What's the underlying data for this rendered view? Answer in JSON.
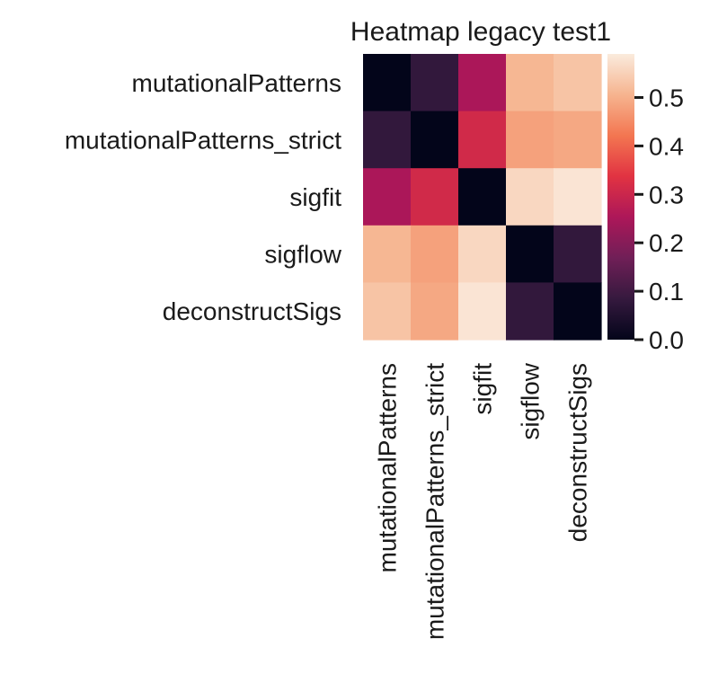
{
  "chart_data": {
    "type": "heatmap",
    "title": "Heatmap legacy test1",
    "row_labels": [
      "mutationalPatterns",
      "mutationalPatterns_strict",
      "sigfit",
      "sigflow",
      "deconstructSigs"
    ],
    "col_labels": [
      "mutationalPatterns",
      "mutationalPatterns_strict",
      "sigfit",
      "sigflow",
      "deconstructSigs"
    ],
    "values": [
      [
        0.0,
        0.08,
        0.25,
        0.51,
        0.53
      ],
      [
        0.08,
        0.0,
        0.31,
        0.48,
        0.49
      ],
      [
        0.25,
        0.31,
        0.0,
        0.56,
        0.58
      ],
      [
        0.51,
        0.48,
        0.56,
        0.0,
        0.08
      ],
      [
        0.53,
        0.49,
        0.58,
        0.08,
        0.0
      ]
    ],
    "colorbar": {
      "colormap": "rocket",
      "vmin": 0.0,
      "vmax": 0.59,
      "ticks": [
        0.0,
        0.1,
        0.2,
        0.3,
        0.4,
        0.5
      ],
      "tick_labels": [
        "0.0",
        "0.1",
        "0.2",
        "0.3",
        "0.4",
        "0.5"
      ]
    },
    "colormap_stops": [
      "#03051A",
      "#35193E",
      "#701F57",
      "#AD1759",
      "#E13342",
      "#F37651",
      "#F6B48F",
      "#FAEBDD"
    ]
  }
}
